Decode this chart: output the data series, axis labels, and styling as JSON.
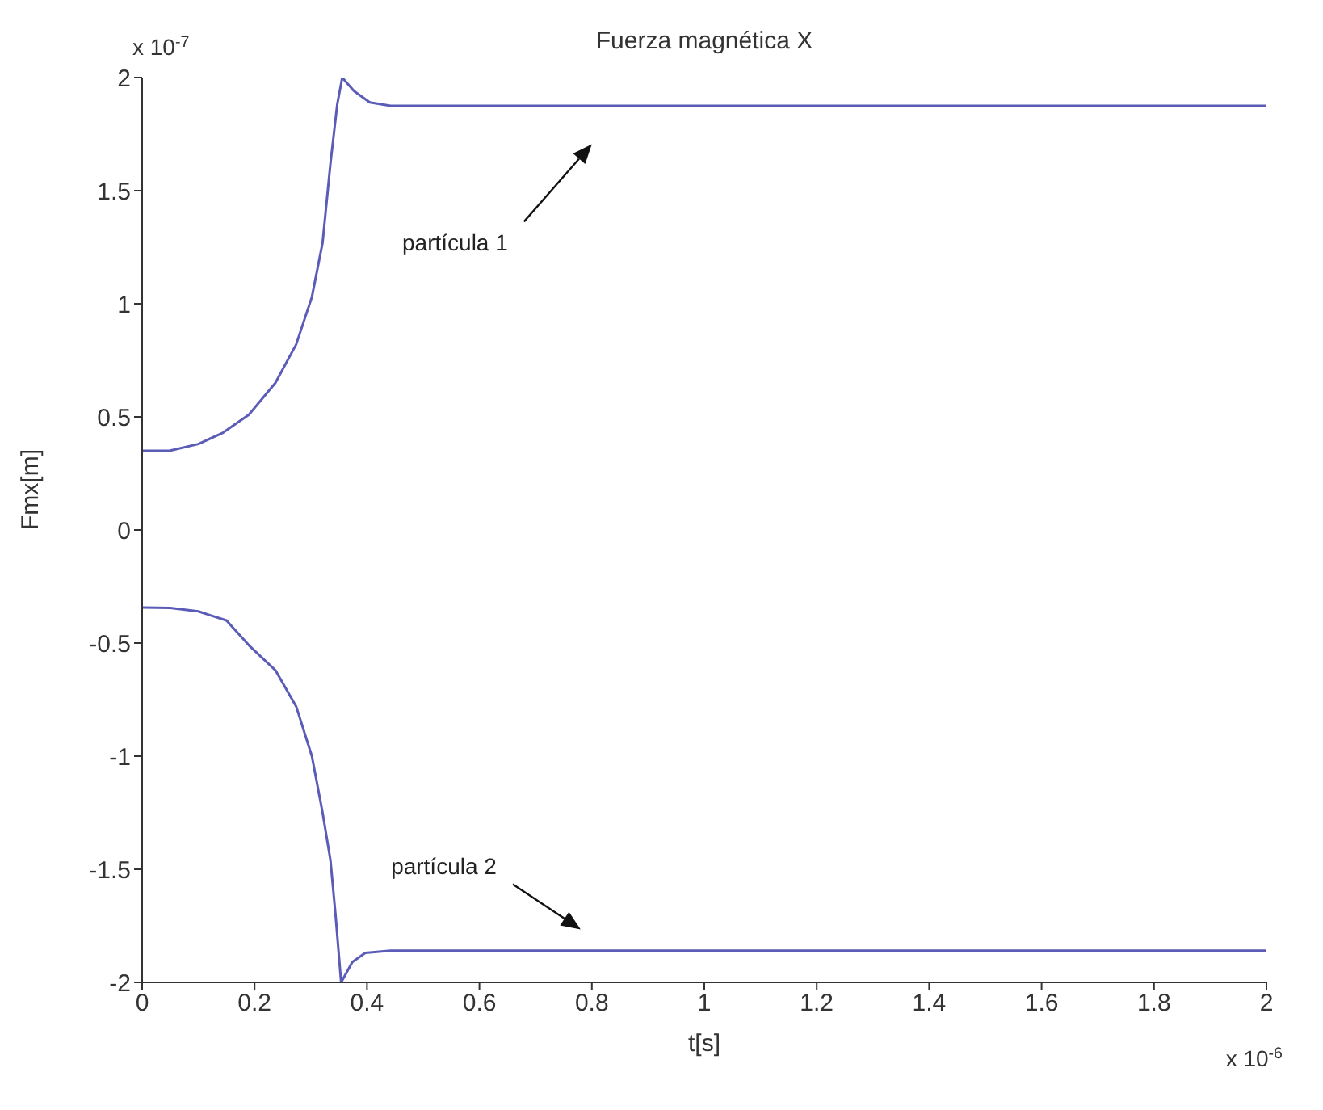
{
  "chart_data": {
    "type": "line",
    "title": "Fuerza magnética X",
    "xlabel": "t[s]",
    "ylabel": "Fmx[m]",
    "xlim": [
      0,
      2
    ],
    "xticks": [
      0,
      0.2,
      0.4,
      0.6,
      0.8,
      1,
      1.2,
      1.4,
      1.6,
      1.8,
      2
    ],
    "ylim": [
      -2,
      2
    ],
    "yticks": [
      -2,
      -1.5,
      -1,
      -0.5,
      0,
      0.5,
      1,
      1.5,
      2
    ],
    "grid": false,
    "legend": false,
    "marker": "none",
    "line_style": "solid",
    "series": [
      {
        "color": "#5b5bb8",
        "x": [
          0,
          0.05,
          0.1,
          0.144,
          0.19,
          0.237,
          0.274,
          0.302,
          0.321,
          0.335,
          0.347,
          0.356,
          0.377,
          0.405,
          0.442,
          0.6,
          1,
          1.5,
          2
        ],
        "values": [
          0.35,
          0.351,
          0.38,
          0.43,
          0.51,
          0.65,
          0.82,
          1.03,
          1.27,
          1.62,
          1.88,
          2.0,
          1.94,
          1.89,
          1.875,
          1.875,
          1.875,
          1.875,
          1.875
        ]
      },
      {
        "color": "#5b5bb8",
        "x": [
          0,
          0.05,
          0.1,
          0.15,
          0.19,
          0.237,
          0.274,
          0.302,
          0.321,
          0.335,
          0.344,
          0.354,
          0.374,
          0.397,
          0.442,
          0.6,
          1,
          1.5,
          2
        ],
        "values": [
          -0.343,
          -0.345,
          -0.36,
          -0.4,
          -0.51,
          -0.62,
          -0.78,
          -1.0,
          -1.25,
          -1.46,
          -1.7,
          -2.0,
          -1.91,
          -1.87,
          -1.86,
          -1.86,
          -1.86,
          -1.86,
          -1.86
        ]
      }
    ],
    "annotations": [
      "partícula 1",
      "partícula 2",
      "x 10$^{-7}$",
      "x 10$^{-6}$"
    ]
  }
}
